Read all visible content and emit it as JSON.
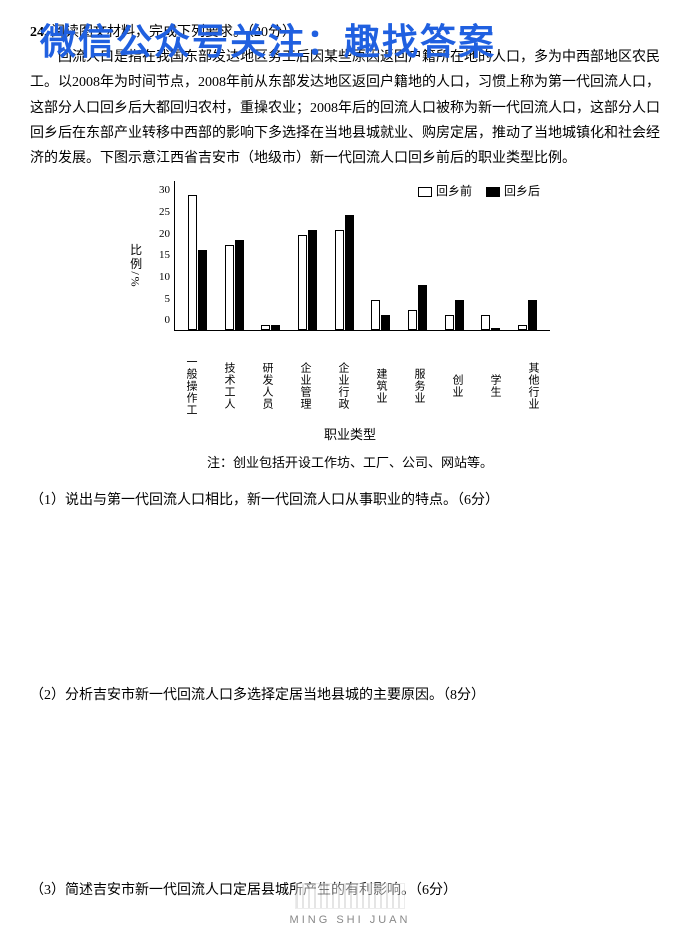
{
  "watermark": "微信公众号关注：趣找答案",
  "question_number": "24.",
  "question_stem": "阅读图文材料，完成下列要求。（20分）",
  "paragraph": "回流人口是指在我国东部发达地区务工后因某些原因返回户籍所在地的人口，多为中西部地区农民工。以2008年为时间节点，2008年前从东部发达地区返回户籍地的人口，习惯上称为第一代回流人口，这部分人口回乡后大都回归农村，重操农业；2008年后的回流人口被称为新一代回流人口，这部分人口回乡后在东部产业转移中西部的影响下多选择在当地县城就业、购房定居，推动了当地城镇化和社会经济的发展。下图示意江西省吉安市（地级市）新一代回流人口回乡前后的职业类型比例。",
  "chart": {
    "type": "bar",
    "y_label": "比例/%",
    "x_title": "职业类型",
    "note": "注：创业包括开设工作坊、工厂、公司、网站等。",
    "legend": {
      "before": "回乡前",
      "after": "回乡后"
    },
    "legend_colors": {
      "before": "#ffffff",
      "after": "#000000"
    },
    "ylim": [
      0,
      30
    ],
    "ytick_step": 5,
    "categories": [
      "一般操作工",
      "技术工人",
      "研发人员",
      "企业管理",
      "企业行政",
      "建筑业",
      "服务业",
      "创业",
      "学生",
      "其他行业"
    ],
    "before_values": [
      27,
      17,
      1,
      19,
      20,
      6,
      4,
      3,
      3,
      1
    ],
    "after_values": [
      16,
      18,
      1,
      20,
      23,
      3,
      9,
      6,
      0,
      6
    ],
    "bar_border": "#000000",
    "background": "#ffffff"
  },
  "sub_questions": {
    "q1": "（1）说出与第一代回流人口相比，新一代回流人口从事职业的特点。（6分）",
    "q2": "（2）分析吉安市新一代回流人口多选择定居当地县城的主要原因。（8分）",
    "q3": "（3）简述吉安市新一代回流人口定居县城所产生的有利影响。（6分）"
  },
  "footer": "MING SHI JUAN"
}
